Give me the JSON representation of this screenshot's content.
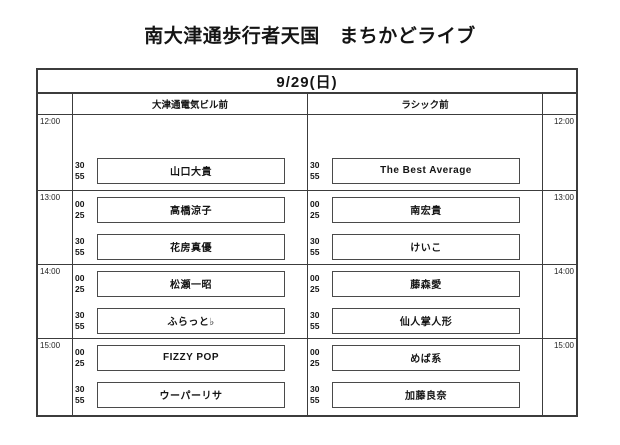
{
  "page": {
    "title": "南大津通歩行者天国　まちかどライブ",
    "date_header": "9/29(日)"
  },
  "venues": [
    {
      "name": "大津通電気ビル前"
    },
    {
      "name": "ラシック前"
    }
  ],
  "schedule": [
    {
      "hour": "12:00",
      "venue1": [
        {
          "min1": "",
          "min2": "",
          "name": ""
        },
        {
          "min1": "30",
          "min2": "55",
          "name": "山口大貴"
        }
      ],
      "venue2": [
        {
          "min1": "",
          "min2": "",
          "name": ""
        },
        {
          "min1": "30",
          "min2": "55",
          "name": "The Best Average"
        }
      ]
    },
    {
      "hour": "13:00",
      "venue1": [
        {
          "min1": "00",
          "min2": "25",
          "name": "高橋涼子"
        },
        {
          "min1": "30",
          "min2": "55",
          "name": "花房真優"
        }
      ],
      "venue2": [
        {
          "min1": "00",
          "min2": "25",
          "name": "南宏貴"
        },
        {
          "min1": "30",
          "min2": "55",
          "name": "けいこ"
        }
      ]
    },
    {
      "hour": "14:00",
      "venue1": [
        {
          "min1": "00",
          "min2": "25",
          "name": "松瀬一昭"
        },
        {
          "min1": "30",
          "min2": "55",
          "name": "ふらっと♭"
        }
      ],
      "venue2": [
        {
          "min1": "00",
          "min2": "25",
          "name": "藤森愛"
        },
        {
          "min1": "30",
          "min2": "55",
          "name": "仙人掌人形"
        }
      ]
    },
    {
      "hour": "15:00",
      "venue1": [
        {
          "min1": "00",
          "min2": "25",
          "name": "FIZZY POP"
        },
        {
          "min1": "30",
          "min2": "55",
          "name": "ウーパーリサ"
        }
      ],
      "venue2": [
        {
          "min1": "00",
          "min2": "25",
          "name": "めば系"
        },
        {
          "min1": "30",
          "min2": "55",
          "name": "加藤良奈"
        }
      ]
    }
  ]
}
